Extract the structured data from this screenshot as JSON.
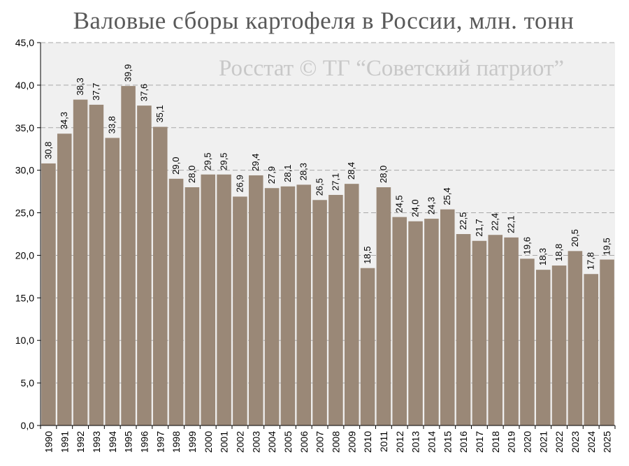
{
  "chart_data": {
    "type": "bar",
    "title": "Валовые сборы картофеля в России, млн. тонн",
    "watermark": "Росстат © ТГ “Советский патриот”",
    "xlabel": "",
    "ylabel": "",
    "ylim": [
      0,
      45
    ],
    "y_ticks": [
      "0,0",
      "5,0",
      "10,0",
      "15,0",
      "20,0",
      "25,0",
      "30,0",
      "35,0",
      "40,0",
      "45,0"
    ],
    "grid": true,
    "bar_color": "#9a8877",
    "plot_bg": "#f0f0f0",
    "categories": [
      "1990",
      "1991",
      "1992",
      "1993",
      "1994",
      "1995",
      "1996",
      "1997",
      "1998",
      "1999",
      "2000",
      "2001",
      "2002",
      "2003",
      "2004",
      "2005",
      "2006",
      "2007",
      "2008",
      "2009",
      "2010",
      "2011",
      "2012",
      "2013",
      "2014",
      "2015",
      "2016",
      "2017",
      "2018",
      "2019",
      "2020",
      "2021",
      "2022",
      "2023",
      "2024",
      "2025"
    ],
    "values": [
      30.8,
      34.3,
      38.3,
      37.7,
      33.8,
      39.9,
      37.6,
      35.1,
      29.0,
      28.0,
      29.5,
      29.5,
      26.9,
      29.4,
      27.9,
      28.1,
      28.3,
      26.5,
      27.1,
      28.4,
      18.5,
      28.0,
      24.5,
      24.0,
      24.3,
      25.4,
      22.5,
      21.7,
      22.4,
      22.1,
      19.6,
      18.3,
      18.8,
      20.5,
      17.8,
      19.5
    ],
    "value_labels": [
      "30,8",
      "34,3",
      "38,3",
      "37,7",
      "33,8",
      "39,9",
      "37,6",
      "35,1",
      "29,0",
      "28,0",
      "29,5",
      "29,5",
      "26,9",
      "29,4",
      "27,9",
      "28,1",
      "28,3",
      "26,5",
      "27,1",
      "28,4",
      "18,5",
      "28,0",
      "24,5",
      "24,0",
      "24,3",
      "25,4",
      "22,5",
      "21,7",
      "22,4",
      "22,1",
      "19,6",
      "18,3",
      "18,8",
      "20,5",
      "17,8",
      "19,5"
    ]
  }
}
